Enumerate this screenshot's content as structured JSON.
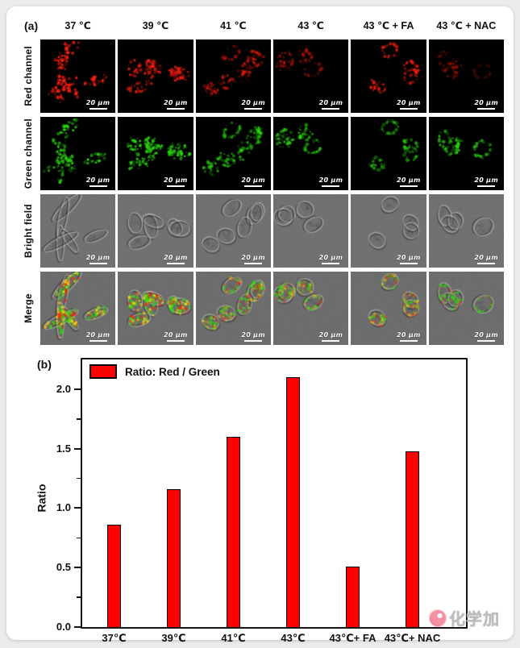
{
  "page": {
    "background": "#ececec",
    "card_background": "#ffffff"
  },
  "panel_a": {
    "label": "(a)",
    "columns": [
      "37 ℃",
      "39 ℃",
      "41 ℃",
      "43 ℃",
      "43 ℃ + FA",
      "43 ℃ + NAC"
    ],
    "rows": [
      {
        "label": "Red channel",
        "type": "red"
      },
      {
        "label": "Green channel",
        "type": "green"
      },
      {
        "label": "Bright field",
        "type": "bright"
      },
      {
        "label": "Merge",
        "type": "merge"
      }
    ],
    "scale_bar_label": "20 μm",
    "red_intensity": [
      0.95,
      0.8,
      0.55,
      0.45,
      0.85,
      0.3
    ],
    "green_intensity": [
      0.9,
      0.95,
      0.75,
      0.8,
      0.65,
      0.8
    ],
    "cell_shape": [
      "spindle",
      "mixed",
      "round",
      "round",
      "round",
      "round"
    ],
    "colors": {
      "red_channel": "#ff2012",
      "green_channel": "#2ddd12",
      "yellow_overlap": "#ebdc19",
      "bright_field_bg": "#717171",
      "black_bg": "#000000"
    }
  },
  "panel_b": {
    "label": "(b)"
  },
  "chart_data": {
    "type": "bar",
    "categories": [
      "37℃",
      "39℃",
      "41℃",
      "43℃",
      "43℃+ FA",
      "43℃+ NAC"
    ],
    "values": [
      0.86,
      1.16,
      1.6,
      2.1,
      0.51,
      1.48
    ],
    "legend": "Ratio: Red / Green",
    "title": "",
    "xlabel": "",
    "ylabel": "Ratio",
    "ylim": [
      0,
      2.25
    ],
    "yticks": [
      "0.0",
      "0.5",
      "1.0",
      "1.5",
      "2.0"
    ],
    "minor_ytick_step": 0.25,
    "bar_color": "#ff0000",
    "bar_border_color": "#000000",
    "legend_position": "top-left-inside",
    "grid": false
  },
  "watermark": {
    "text": "化学加",
    "logo": "huaxuejia-speech-bubble"
  }
}
